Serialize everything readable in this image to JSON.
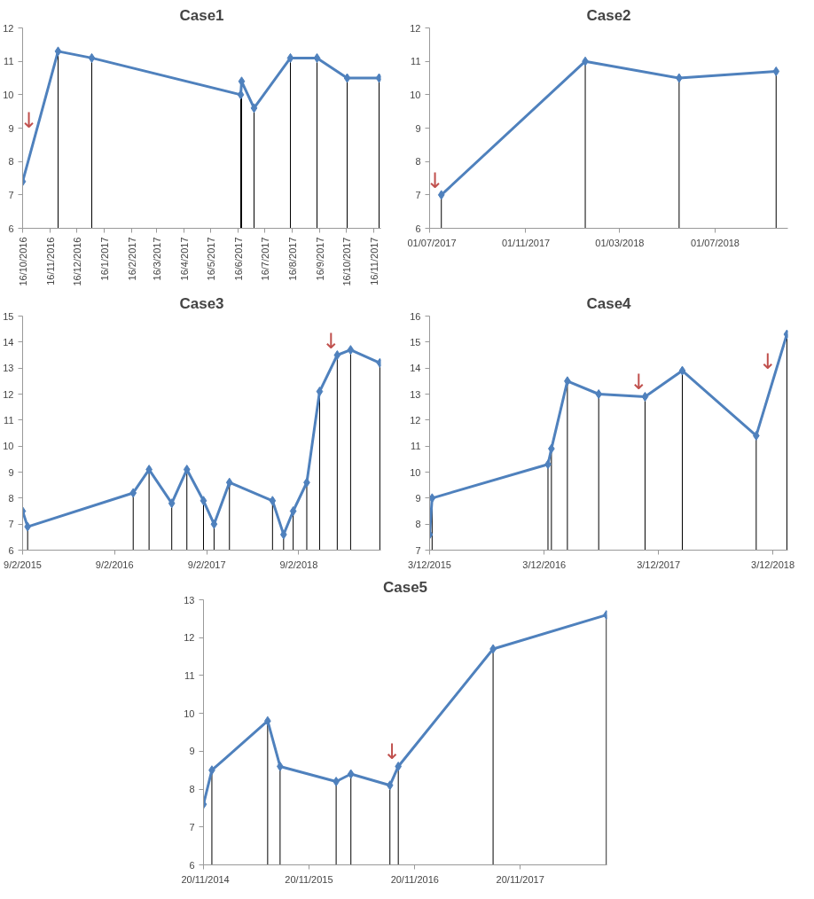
{
  "chart_data": [
    {
      "type": "line",
      "title": "Case1",
      "marker": "diamond",
      "x": [
        "2016-10-16",
        "2016-11-25",
        "2017-01-02",
        "2017-06-19",
        "2017-06-20",
        "2017-07-04",
        "2017-08-14",
        "2017-09-13",
        "2017-10-17",
        "2017-11-22"
      ],
      "series": [
        {
          "type": "lollipop",
          "color": "#4f81bd",
          "values": [
            7.4,
            11.3,
            11.1,
            10.0,
            10.4,
            9.6,
            11.1,
            11.1,
            10.5,
            10.5
          ]
        },
        {
          "color": "#4f81bd",
          "marker": "none",
          "values": [
            7.4,
            11.3,
            11.1,
            10.0,
            10.4,
            9.6,
            11.1,
            11.1,
            10.5,
            10.5
          ]
        }
      ],
      "xlim": [
        "2016-10-16",
        "2017-11-24"
      ],
      "xticks": [
        {
          "value": "2016-10-16",
          "label": "16/10/2016"
        },
        {
          "value": "2016-11-16",
          "label": "16/11/2016"
        },
        {
          "value": "2016-12-16",
          "label": "16/12/2016"
        },
        {
          "value": "2017-01-16",
          "label": "16/1/2017"
        },
        {
          "value": "2017-02-16",
          "label": "16/2/2017"
        },
        {
          "value": "2017-03-16",
          "label": "16/3/2017"
        },
        {
          "value": "2017-04-16",
          "label": "16/4/2017"
        },
        {
          "value": "2017-05-16",
          "label": "16/5/2017"
        },
        {
          "value": "2017-06-16",
          "label": "16/6/2017"
        },
        {
          "value": "2017-07-16",
          "label": "16/7/2017"
        },
        {
          "value": "2017-08-16",
          "label": "16/8/2017"
        },
        {
          "value": "2017-09-16",
          "label": "16/9/2017"
        },
        {
          "value": "2017-10-16",
          "label": "16/10/2017"
        },
        {
          "value": "2017-11-16",
          "label": "16/11/2017"
        }
      ],
      "ylim": [
        6,
        12
      ],
      "yticks": [
        6,
        7,
        8,
        9,
        10,
        11,
        12
      ],
      "annotations": [
        {
          "text": "↓",
          "x": "2016-10-30",
          "y": 8.8
        }
      ]
    },
    {
      "type": "line",
      "title": "Case2",
      "marker": "diamond",
      "x": [
        "2017-07-16",
        "2018-01-16",
        "2018-05-16",
        "2018-09-17"
      ],
      "series": [
        {
          "type": "lollipop",
          "color": "#4f81bd",
          "values": [
            7.0,
            11.0,
            10.5,
            10.7
          ]
        },
        {
          "color": "#4f81bd",
          "marker": "none",
          "values": [
            7.0,
            11.0,
            10.5,
            10.7
          ]
        }
      ],
      "xlim": [
        "2017-07-01",
        "2018-10-02"
      ],
      "xticks": [
        {
          "value": "2017-07-01",
          "label": "01/07/2017"
        },
        {
          "value": "2017-11-01",
          "label": "01/11/2017"
        },
        {
          "value": "2018-03-01",
          "label": "01/03/2018"
        },
        {
          "value": "2018-07-01",
          "label": "01/07/2018"
        }
      ],
      "ylim": [
        6,
        12
      ],
      "yticks": [
        6,
        7,
        8,
        9,
        10,
        11,
        12
      ],
      "annotations": [
        {
          "text": "↓",
          "x": "2017-07-16",
          "y": 7.0
        }
      ]
    },
    {
      "type": "line",
      "title": "Case3",
      "marker": "diamond",
      "x": [
        "2015-02-09",
        "2015-03-01",
        "2016-04-23",
        "2016-06-25",
        "2016-09-23",
        "2016-11-22",
        "2017-01-27",
        "2017-03-10",
        "2017-05-10",
        "2017-10-28",
        "2017-12-11",
        "2018-01-18",
        "2018-03-13",
        "2018-05-03",
        "2018-07-12",
        "2018-09-03",
        "2018-12-28"
      ],
      "series": [
        {
          "type": "lollipop",
          "color": "#4f81bd",
          "values": [
            7.5,
            6.9,
            8.2,
            9.1,
            7.8,
            9.1,
            7.9,
            7.0,
            8.6,
            7.9,
            6.6,
            7.5,
            8.6,
            12.1,
            13.5,
            13.7,
            13.2
          ]
        },
        {
          "color": "#4f81bd",
          "marker": "none",
          "values": [
            7.5,
            6.9,
            8.2,
            9.1,
            7.8,
            9.1,
            7.9,
            7.0,
            8.6,
            7.9,
            6.6,
            7.5,
            8.6,
            12.1,
            13.5,
            13.7,
            13.2
          ]
        }
      ],
      "xlim": [
        "2015-02-09",
        "2019-01-01"
      ],
      "xticks": [
        {
          "value": "2015-02-09",
          "label": "9/2/2015"
        },
        {
          "value": "2016-02-09",
          "label": "9/2/2016"
        },
        {
          "value": "2017-02-09",
          "label": "9/2/2017"
        },
        {
          "value": "2018-02-09",
          "label": "9/2/2018"
        }
      ],
      "ylim": [
        6,
        15
      ],
      "yticks": [
        6,
        7,
        8,
        9,
        10,
        11,
        12,
        13,
        14,
        15
      ],
      "annotations": [
        {
          "text": "↓",
          "x": "2018-07-12",
          "y": 13.5
        }
      ]
    },
    {
      "type": "line",
      "title": "Case4",
      "marker": "diamond",
      "x": [
        "2015-12-03",
        "2015-12-11",
        "2016-12-15",
        "2016-12-26",
        "2017-02-15",
        "2017-05-26",
        "2017-10-21",
        "2018-02-17",
        "2018-10-11",
        "2019-01-17"
      ],
      "series": [
        {
          "type": "lollipop",
          "color": "#4f81bd",
          "values": [
            7.6,
            9.0,
            10.3,
            10.9,
            13.5,
            13.0,
            12.9,
            13.9,
            11.4,
            15.3
          ]
        },
        {
          "color": "#4f81bd",
          "marker": "none",
          "values": [
            7.6,
            9.0,
            10.3,
            10.9,
            13.5,
            13.0,
            12.9,
            13.9,
            11.4,
            15.3
          ]
        }
      ],
      "xlim": [
        "2015-12-03",
        "2019-01-20"
      ],
      "xticks": [
        {
          "value": "2015-12-03",
          "label": "3/12/2015"
        },
        {
          "value": "2016-12-03",
          "label": "3/12/2016"
        },
        {
          "value": "2017-12-03",
          "label": "3/12/2017"
        },
        {
          "value": "2018-12-03",
          "label": "3/12/2018"
        }
      ],
      "ylim": [
        7,
        16
      ],
      "yticks": [
        7,
        8,
        9,
        10,
        11,
        12,
        13,
        14,
        15,
        16
      ],
      "annotations": [
        {
          "text": "↓",
          "x": "2017-10-21",
          "y": 12.9
        },
        {
          "text": "↓",
          "x": "2018-12-07",
          "y": 13.7
        }
      ]
    },
    {
      "type": "line",
      "title": "Case5",
      "marker": "diamond",
      "x": [
        "2014-11-20",
        "2014-12-19",
        "2015-06-30",
        "2015-08-12",
        "2016-02-22",
        "2016-04-13",
        "2016-08-26",
        "2016-09-24",
        "2017-08-18",
        "2018-09-14"
      ],
      "series": [
        {
          "type": "lollipop",
          "color": "#4f81bd",
          "values": [
            7.6,
            8.5,
            9.8,
            8.6,
            8.2,
            8.4,
            8.1,
            8.6,
            11.7,
            12.6
          ]
        },
        {
          "color": "#4f81bd",
          "marker": "none",
          "values": [
            7.6,
            8.5,
            9.8,
            8.6,
            8.2,
            8.4,
            8.1,
            8.6,
            11.7,
            12.6
          ]
        }
      ],
      "xlim": [
        "2014-11-20",
        "2018-09-16"
      ],
      "xticks": [
        {
          "value": "2014-11-20",
          "label": "20/11/2014"
        },
        {
          "value": "2015-11-20",
          "label": "20/11/2015"
        },
        {
          "value": "2016-11-20",
          "label": "20/11/2016"
        },
        {
          "value": "2017-11-20",
          "label": "20/11/2017"
        }
      ],
      "ylim": [
        6,
        13
      ],
      "yticks": [
        6,
        7,
        8,
        9,
        10,
        11,
        12,
        13
      ],
      "annotations": [
        {
          "text": "↓",
          "x": "2016-09-24",
          "y": 8.6
        }
      ]
    }
  ]
}
